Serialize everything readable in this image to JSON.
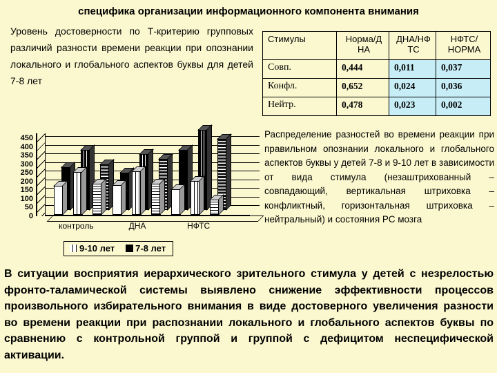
{
  "slide": {
    "title": "специфика организации информационного компонента внимания",
    "left_text": "Уровень достоверности по Т-критерию групповых различий разности времени реакции при опознании локального и глобального аспектов буквы для детей 7-8 лет",
    "right_text": "Распределение разностей во времени реакции при правильном опознании локального и глобального аспектов буквы у детей 7-8 и 9-10 лет в зависимости от вида стимула (незаштрихованный – совпадающий, вертикальная штриховка – конфликтный, горизонтальная штриховка – нейтральный) и состояния РС мозга",
    "bottom_text": "В ситуации восприятия иерархического зрительного стимула у детей с незрелостью фронто-таламической системы выявлено снижение эффективности процессов произвольного избирательного внимания в виде достоверного увеличения разности во времени реакции при распознании локального и глобального аспектов буквы по сравнению с контрольной группой и группой с дефицитом неспецифической активации."
  },
  "table": {
    "headers": [
      "Стимулы",
      "Норма/Д\nНА",
      "ДНА/НФ\nТС",
      "НФТС/\nНОРМА"
    ],
    "rows": [
      {
        "label": "Совп.",
        "values": [
          "0,444",
          "0,011",
          "0,037"
        ]
      },
      {
        "label": "Конфл.",
        "values": [
          "0,652",
          "0,024",
          "0,036"
        ]
      },
      {
        "label": "Нейтр.",
        "values": [
          "0,478",
          "0,023",
          "0,002"
        ]
      }
    ]
  },
  "chart_data": {
    "type": "bar",
    "title": "",
    "xlabel": "",
    "ylabel": "",
    "categories": [
      "контроль",
      "ДНА",
      "НФТС"
    ],
    "series": [
      {
        "name": "9-10 лет",
        "stimulus": "совпадающий",
        "pattern": "plain-light",
        "values": [
          170,
          175,
          150
        ]
      },
      {
        "name": "7-8 лет",
        "stimulus": "совпадающий",
        "pattern": "plain-dark",
        "values": [
          250,
          220,
          350
        ]
      },
      {
        "name": "9-10 лет",
        "stimulus": "конфликтный",
        "pattern": "vstripe-light",
        "values": [
          250,
          255,
          200
        ]
      },
      {
        "name": "7-8 лет",
        "stimulus": "конфликтный",
        "pattern": "vstripe-dark",
        "values": [
          350,
          325,
          465
        ]
      },
      {
        "name": "9-10 лет",
        "stimulus": "нейтральный",
        "pattern": "hstripe-light",
        "values": [
          185,
          185,
          90
        ]
      },
      {
        "name": "7-8 лет",
        "stimulus": "нейтральный",
        "pattern": "hstripe-dark",
        "values": [
          265,
          300,
          415
        ]
      }
    ],
    "ylim": [
      0,
      450
    ],
    "ytick_step": 50,
    "grid": true,
    "legend_position": "bottom",
    "legend": [
      {
        "label": "9-10 лет",
        "pattern": "vstripe-light"
      },
      {
        "label": "7-8 лет",
        "pattern": "plain-dark"
      }
    ]
  },
  "colors": {
    "background": "#fbf8cf",
    "table_highlight": "#c7edf6",
    "table_border": "#000000",
    "text": "#000000"
  }
}
